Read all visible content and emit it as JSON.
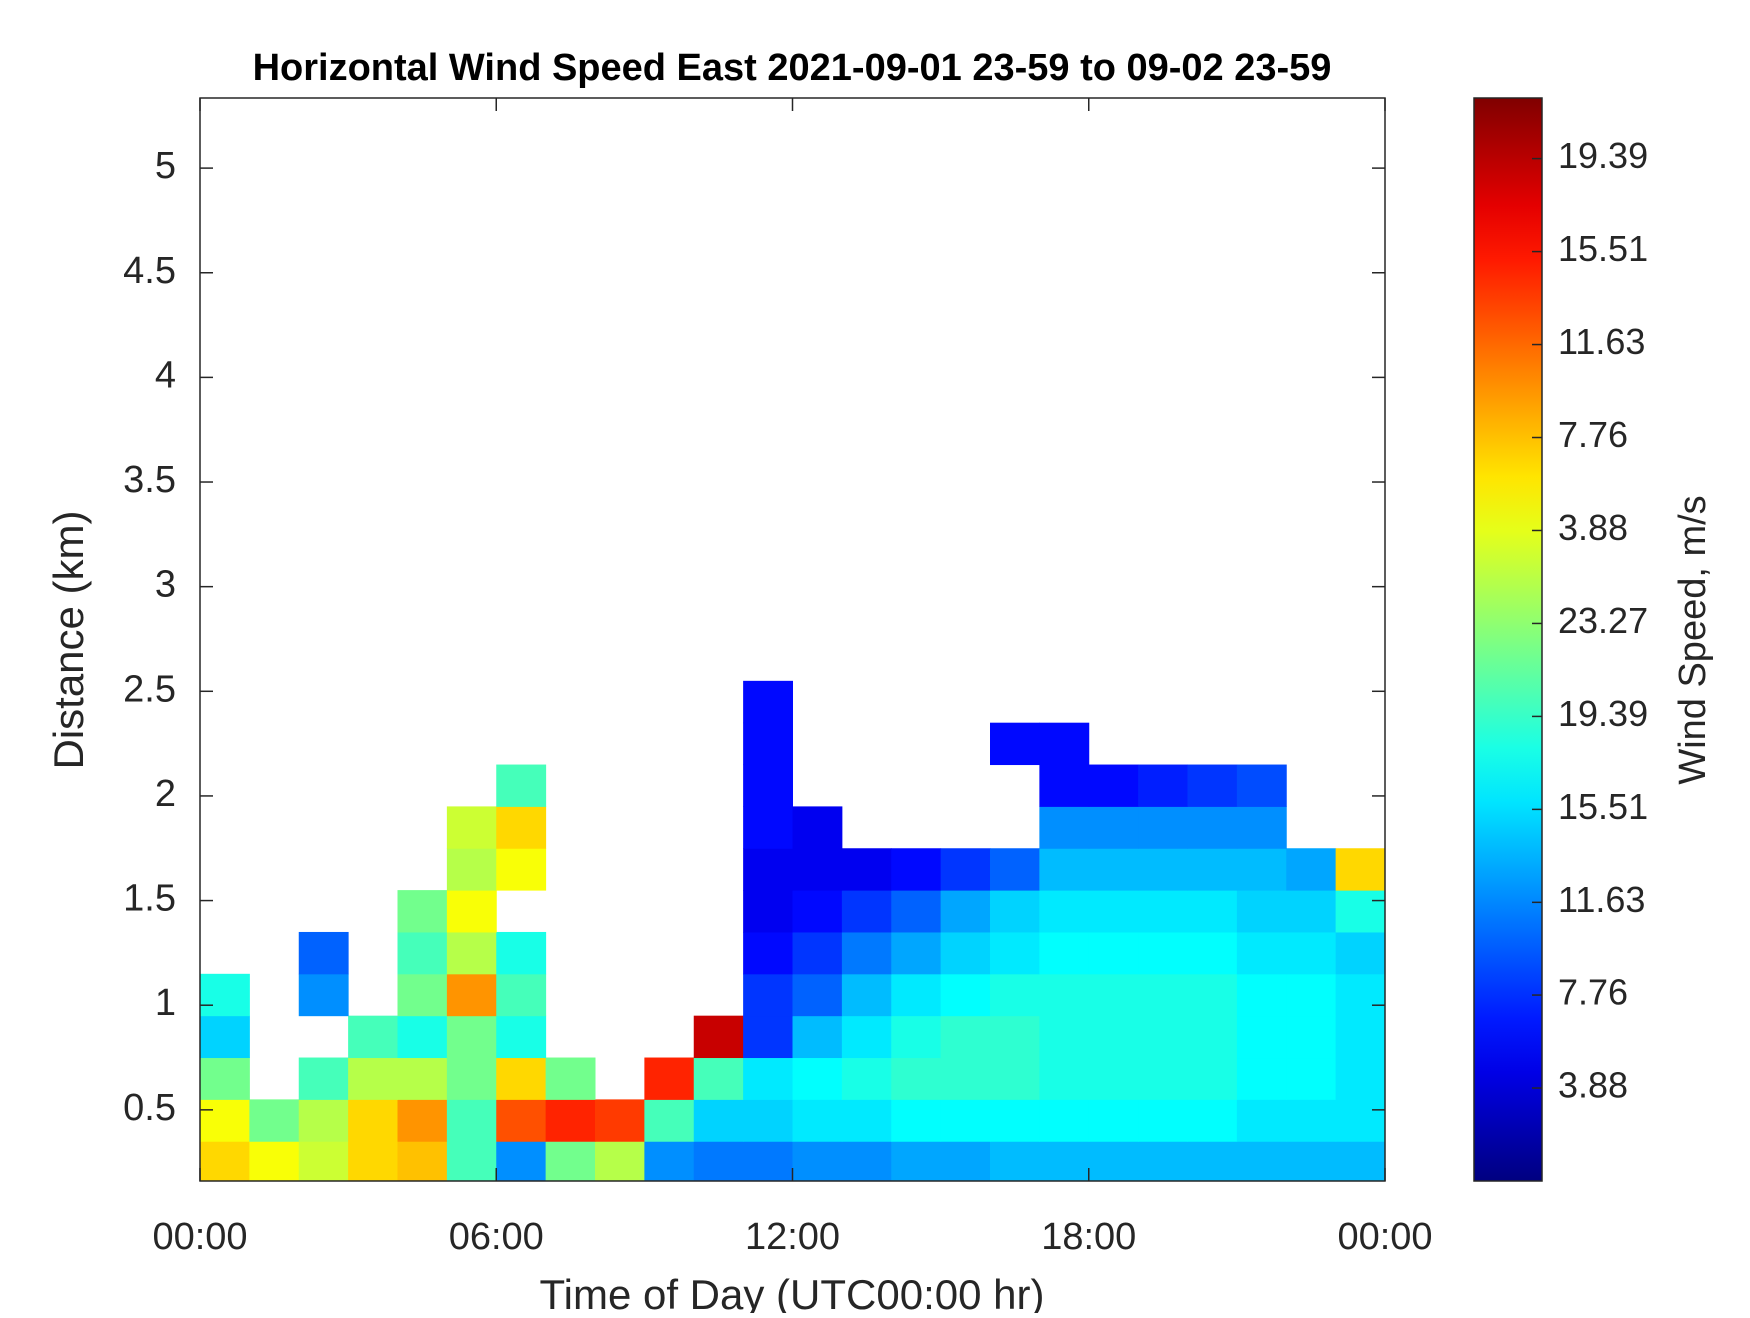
{
  "chart_data": {
    "type": "heatmap",
    "title": "Horizontal Wind Speed East 2021-09-01 23-59 to 09-02 23-59",
    "x_label": "Time of Day (UTC00:00 hr)",
    "y_label": "Distance (km)",
    "colorbar_label": "Wind Speed, m/s",
    "colormap": "jet",
    "xlim": [
      0,
      24
    ],
    "xticks": [
      {
        "value": 0,
        "label": "00:00"
      },
      {
        "value": 6,
        "label": "06:00"
      },
      {
        "value": 12,
        "label": "12:00"
      },
      {
        "value": 18,
        "label": "18:00"
      },
      {
        "value": 24,
        "label": "00:00"
      }
    ],
    "ylim": [
      0.16,
      5.335
    ],
    "yticks": [
      0.5,
      1,
      1.5,
      2,
      2.5,
      3,
      3.5,
      4,
      4.5,
      5
    ],
    "clim": [
      0,
      45.2
    ],
    "cticks": [
      3.88,
      7.76,
      11.63,
      15.51,
      19.39,
      23.27,
      {
        "value": 27.15,
        "label": "3.88"
      },
      {
        "value": 31.03,
        "label": "7.76"
      },
      {
        "value": 34.91,
        "label": "11.63"
      },
      {
        "value": 38.79,
        "label": "15.51"
      },
      {
        "value": 42.67,
        "label": "19.39"
      }
    ],
    "x_edges": [
      0,
      1,
      2,
      3,
      4,
      5,
      6,
      7,
      8,
      9,
      10,
      11,
      12,
      13,
      14,
      15,
      16,
      17,
      18,
      19,
      20,
      21,
      22,
      23,
      24
    ],
    "y_edges": [
      0.15,
      0.35,
      0.55,
      0.75,
      0.95,
      1.15,
      1.35,
      1.55,
      1.75,
      1.95,
      2.15,
      2.35,
      2.55
    ],
    "z": [
      [
        30,
        28,
        26,
        30,
        31,
        20,
        12,
        22,
        25,
        12,
        11,
        11,
        12,
        12,
        13,
        13,
        14,
        14,
        14,
        14,
        14,
        14,
        14,
        14
      ],
      [
        28,
        22,
        25,
        30,
        33,
        20,
        36,
        38,
        37,
        20,
        15,
        15,
        16,
        16,
        17,
        17,
        17,
        17,
        17,
        17,
        17,
        16,
        16,
        16
      ],
      [
        22,
        null,
        20,
        25,
        25,
        22,
        30,
        22,
        null,
        38,
        20,
        16,
        17,
        18,
        19,
        19,
        19,
        18,
        18,
        18,
        18,
        17,
        17,
        16
      ],
      [
        15,
        null,
        null,
        20,
        18,
        22,
        18,
        null,
        null,
        null,
        42,
        8,
        14,
        16,
        18,
        19,
        19,
        18,
        18,
        18,
        18,
        17,
        17,
        16
      ],
      [
        18,
        null,
        12,
        null,
        22,
        33,
        20,
        null,
        null,
        null,
        null,
        8,
        10,
        14,
        16,
        17,
        18,
        18,
        18,
        18,
        18,
        17,
        17,
        16
      ],
      [
        null,
        null,
        10,
        null,
        20,
        25,
        18,
        null,
        null,
        null,
        null,
        6,
        8,
        11,
        13,
        15,
        16,
        17,
        17,
        17,
        17,
        16,
        16,
        15
      ],
      [
        null,
        null,
        null,
        null,
        22,
        28,
        null,
        null,
        null,
        null,
        null,
        5,
        6,
        8,
        10,
        13,
        15,
        16,
        16,
        16,
        16,
        15,
        15,
        18
      ],
      [
        null,
        null,
        null,
        null,
        null,
        25,
        28,
        null,
        null,
        null,
        null,
        5,
        5,
        5,
        6,
        8,
        10,
        14,
        14,
        14,
        14,
        14,
        13,
        30
      ],
      [
        null,
        null,
        null,
        null,
        null,
        26,
        30,
        null,
        null,
        null,
        null,
        6,
        5,
        null,
        null,
        null,
        null,
        12,
        12,
        12,
        12,
        12,
        null,
        null
      ],
      [
        null,
        null,
        null,
        null,
        null,
        null,
        20,
        null,
        null,
        null,
        null,
        6,
        null,
        null,
        null,
        null,
        null,
        6,
        6,
        7,
        8,
        9,
        null,
        null
      ],
      [
        null,
        null,
        null,
        null,
        null,
        null,
        null,
        null,
        null,
        null,
        null,
        6,
        null,
        null,
        null,
        null,
        6,
        6,
        null,
        null,
        null,
        null,
        null,
        null
      ],
      [
        null,
        null,
        null,
        null,
        null,
        null,
        null,
        null,
        null,
        null,
        null,
        6,
        null,
        null,
        null,
        null,
        null,
        null,
        null,
        null,
        null,
        null,
        null,
        null
      ]
    ]
  }
}
